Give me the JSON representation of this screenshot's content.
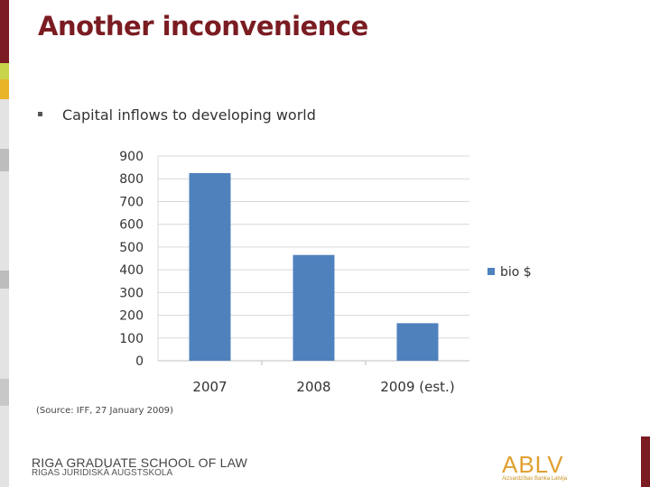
{
  "slide": {
    "title": "Another inconvenience",
    "bullet": "Capital inflows to developing world",
    "source": "(Source: IFF, 27 January 2009)"
  },
  "footer": {
    "school_name": "RIGA GRADUATE SCHOOL OF LAW",
    "school_name_local": "RIGAS JURIDISKĀ AUGSTSKOLA",
    "logo_text": "ABLV",
    "logo_subtext": "Aizsardzības Banka Latvija"
  },
  "colors": {
    "title": "#7a1c22",
    "bar": "#4f81bd",
    "left_accents": [
      "#7a1c22",
      "#c8d44a",
      "#e8b428",
      "#bfbfbf"
    ]
  },
  "chart_data": {
    "type": "bar",
    "categories": [
      "2007",
      "2008",
      "2009 (est.)"
    ],
    "series": [
      {
        "name": "bio $",
        "values": [
          825,
          465,
          165
        ]
      }
    ],
    "title": "",
    "xlabel": "",
    "ylabel": "",
    "ylim": [
      0,
      900
    ],
    "yticks": [
      0,
      100,
      200,
      300,
      400,
      500,
      600,
      700,
      800,
      900
    ],
    "grid": true,
    "legend": "right"
  }
}
